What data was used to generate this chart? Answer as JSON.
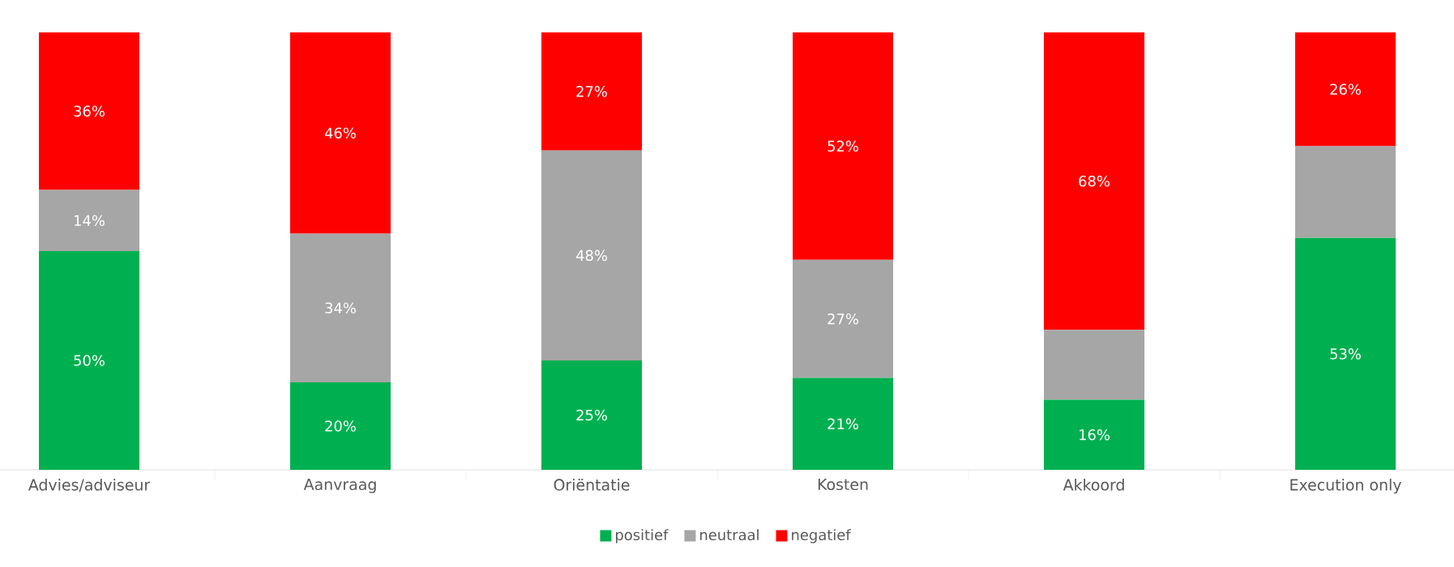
{
  "chart_data": {
    "type": "bar",
    "stacked": true,
    "categories": [
      "Advies/adviseur",
      "Aanvraag",
      "Oriëntatie",
      "Kosten",
      "Akkoord",
      "Execution only"
    ],
    "legend": "bottom",
    "series": [
      {
        "name": "positief",
        "color": "#00b050",
        "values": [
          50,
          20,
          25,
          21,
          16,
          53
        ],
        "value_labels": [
          "50%",
          "20%",
          "25%",
          "21%",
          "16%",
          "53%"
        ]
      },
      {
        "name": "neutraal",
        "color": "#a6a6a6",
        "values": [
          14,
          34,
          48,
          27,
          16,
          21
        ],
        "value_labels": [
          "14%",
          "34%",
          "48%",
          "27%",
          null,
          null
        ]
      },
      {
        "name": "negatief",
        "color": "#ff0000",
        "values": [
          36,
          46,
          27,
          52,
          68,
          26
        ],
        "value_labels": [
          "36%",
          "46%",
          "27%",
          "52%",
          "68%",
          "26%"
        ]
      }
    ]
  }
}
